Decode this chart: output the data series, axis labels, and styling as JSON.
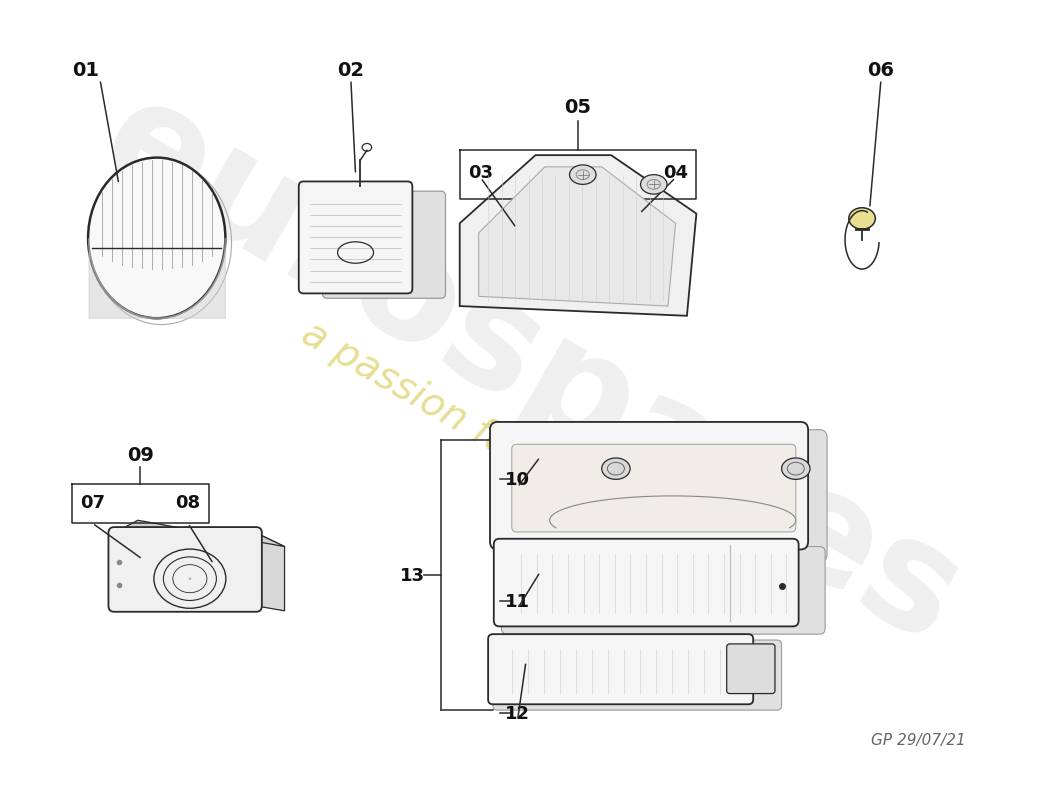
{
  "background_color": "#ffffff",
  "watermark_text": "eurospares",
  "watermark_subtext": "a passion for parts since 1985",
  "watermark_color": "#cccccc",
  "watermark_subtext_color": "#d4c84a",
  "signature": "GP 29/07/21",
  "sketch_color": "#2a2a2a",
  "label_fontsize": 14,
  "fig_width": 11.0,
  "fig_height": 8.0
}
